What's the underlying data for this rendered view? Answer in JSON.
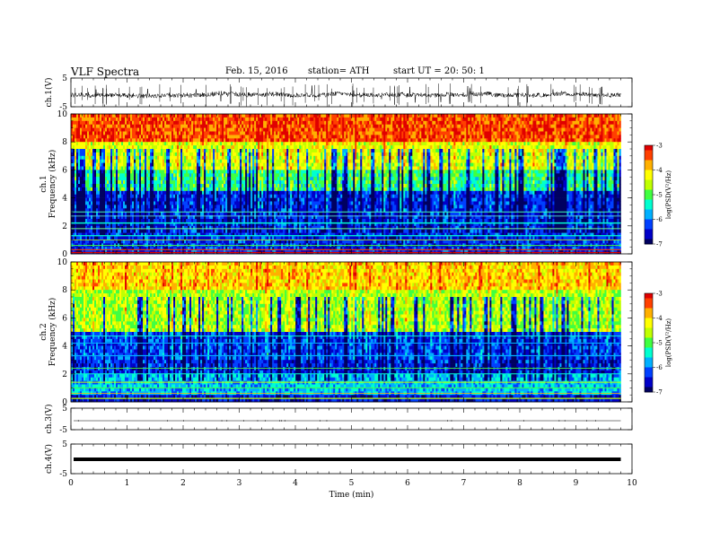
{
  "header": {
    "title": "VLF  Spectra",
    "date": "Feb. 15, 2016",
    "station": "station= ATH",
    "start": "start  UT  =    20: 50: 1"
  },
  "chart_data": [
    {
      "type": "line",
      "panel": "ch1-waveform",
      "ylabel": "ch.1(V)",
      "yticks": [
        "5",
        "-5"
      ],
      "ylim": [
        -5,
        5
      ]
    },
    {
      "type": "heatmap",
      "panel": "ch1-spectrogram",
      "ylabel": "Frequency (kHz)",
      "ylabel_channel": "ch.1",
      "yticks": [
        "0",
        "2",
        "4",
        "6",
        "8",
        "10"
      ],
      "ylim": [
        0,
        10
      ],
      "colorbar": {
        "label": "log(PSD(V²/Hz)",
        "ticks": [
          "-3",
          "-4",
          "-5",
          "-6",
          "-7"
        ],
        "range": [
          -7,
          -3
        ]
      }
    },
    {
      "type": "heatmap",
      "panel": "ch2-spectrogram",
      "ylabel": "Frequency (kHz)",
      "ylabel_channel": "ch.2",
      "yticks": [
        "0",
        "2",
        "4",
        "6",
        "8",
        "10"
      ],
      "ylim": [
        0,
        10
      ],
      "colorbar": {
        "label": "log(PSD(V²/Hz)",
        "ticks": [
          "-3",
          "-4",
          "-5",
          "-6",
          "-7"
        ],
        "range": [
          -7,
          -3
        ]
      }
    },
    {
      "type": "line",
      "panel": "ch3-waveform",
      "ylabel": "ch.3(V)",
      "yticks": [
        "5",
        "-5"
      ],
      "ylim": [
        -5,
        5
      ]
    },
    {
      "type": "line",
      "panel": "ch4-waveform",
      "ylabel": "ch.4(V)",
      "yticks": [
        "5",
        "-5"
      ],
      "ylim": [
        -5,
        5
      ]
    }
  ],
  "xaxis": {
    "label": "Time  (min)",
    "ticks": [
      "0",
      "1",
      "2",
      "3",
      "4",
      "5",
      "6",
      "7",
      "8",
      "9",
      "10"
    ],
    "xlim": [
      0,
      10
    ],
    "data_end": 9.8
  },
  "colors": {
    "palette": [
      "#000060",
      "#0000c8",
      "#0040ff",
      "#00b0ff",
      "#00ffd0",
      "#40ff40",
      "#c0ff00",
      "#ffff00",
      "#ffb000",
      "#ff4000",
      "#e00000"
    ]
  }
}
